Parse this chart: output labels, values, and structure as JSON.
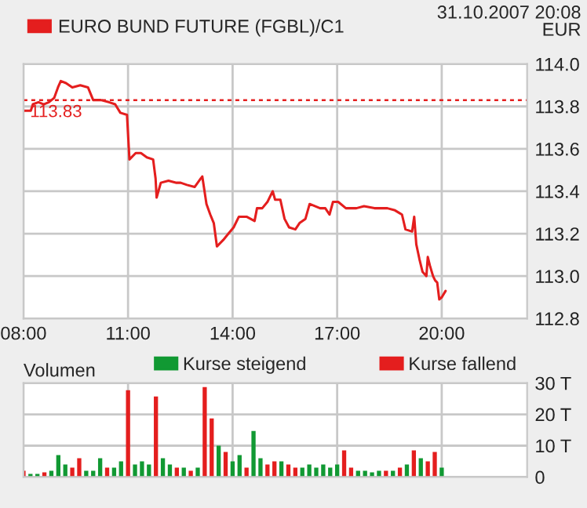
{
  "chart_data": [
    {
      "type": "line",
      "legend": "top left",
      "grid": true,
      "annotations": [
        "31.10.2007 20:08",
        "EUR"
      ],
      "xlim": [
        8,
        22.45
      ],
      "xticks": [
        {
          "value": 8,
          "label": "08:00"
        },
        {
          "value": 11,
          "label": "11:00"
        },
        {
          "value": 14,
          "label": "14:00"
        },
        {
          "value": 17,
          "label": "17:00"
        },
        {
          "value": 20,
          "label": "20:00"
        }
      ],
      "ylim": [
        112.8,
        114.0
      ],
      "yticks": [
        {
          "value": 112.8,
          "label": "112.8"
        },
        {
          "value": 113.0,
          "label": "113.0"
        },
        {
          "value": 113.2,
          "label": "113.2"
        },
        {
          "value": 113.4,
          "label": "113.4"
        },
        {
          "value": 113.6,
          "label": "113.6"
        },
        {
          "value": 113.8,
          "label": "113.8"
        },
        {
          "value": 114.0,
          "label": "114.0"
        }
      ],
      "ref_lines": [
        {
          "axis": "y",
          "value": 113.83,
          "label": "113.83",
          "color": "#e41e1e",
          "line_style": "dashed"
        }
      ],
      "x": [
        8.0,
        8.21,
        8.27,
        8.43,
        8.58,
        8.73,
        8.88,
        8.99,
        9.07,
        9.22,
        9.4,
        9.63,
        9.85,
        10.0,
        10.22,
        10.45,
        10.63,
        10.78,
        10.97,
        11.04,
        11.22,
        11.37,
        11.54,
        11.72,
        11.79,
        11.82,
        11.94,
        12.16,
        12.39,
        12.51,
        12.69,
        12.91,
        13.13,
        13.25,
        13.36,
        13.46,
        13.55,
        13.73,
        13.88,
        14.03,
        14.18,
        14.4,
        14.63,
        14.7,
        14.85,
        15.0,
        15.15,
        15.22,
        15.37,
        15.49,
        15.62,
        15.8,
        15.92,
        16.09,
        16.21,
        16.36,
        16.51,
        16.66,
        16.78,
        16.88,
        17.03,
        17.25,
        17.55,
        17.77,
        18.07,
        18.44,
        18.66,
        18.86,
        18.96,
        19.15,
        19.21,
        19.27,
        19.36,
        19.45,
        19.56,
        19.6,
        19.66,
        19.75,
        19.81,
        19.87,
        19.93,
        20.0,
        20.11
      ],
      "series": [
        {
          "name": "EURO BUND FUTURE (FGBL)/C1",
          "color": "#e41e1e",
          "values": [
            113.78,
            113.78,
            113.81,
            113.82,
            113.81,
            113.82,
            113.84,
            113.89,
            113.92,
            113.91,
            113.89,
            113.9,
            113.89,
            113.83,
            113.83,
            113.82,
            113.81,
            113.77,
            113.76,
            113.55,
            113.58,
            113.58,
            113.56,
            113.55,
            113.46,
            113.37,
            113.44,
            113.45,
            113.44,
            113.44,
            113.43,
            113.42,
            113.47,
            113.34,
            113.29,
            113.25,
            113.14,
            113.17,
            113.2,
            113.23,
            113.28,
            113.28,
            113.26,
            113.32,
            113.32,
            113.35,
            113.4,
            113.36,
            113.36,
            113.27,
            113.23,
            113.22,
            113.25,
            113.27,
            113.34,
            113.33,
            113.32,
            113.32,
            113.29,
            113.35,
            113.35,
            113.32,
            113.32,
            113.33,
            113.32,
            113.32,
            113.31,
            113.29,
            113.22,
            113.21,
            113.28,
            113.15,
            113.08,
            113.02,
            113.0,
            113.09,
            113.05,
            113.0,
            112.98,
            112.97,
            112.89,
            112.9,
            112.93
          ]
        }
      ]
    },
    {
      "type": "bar",
      "title": "Volumen",
      "legend": "top",
      "grid": true,
      "tick_labels": "y",
      "xlim": [
        8,
        22.45
      ],
      "xticks": [
        {
          "value": 8,
          "label": null
        },
        {
          "value": 11,
          "label": null
        },
        {
          "value": 14,
          "label": null
        },
        {
          "value": 17,
          "label": null
        },
        {
          "value": 20,
          "label": null
        }
      ],
      "ylim": [
        0,
        30
      ],
      "yticks": [
        0,
        {
          "value": 10,
          "label": "10 T"
        },
        {
          "value": 20,
          "label": "20 T"
        },
        {
          "value": 30,
          "label": "30 T"
        }
      ],
      "x": [
        8.0,
        8.2,
        8.4,
        8.6,
        8.8,
        9.0,
        9.2,
        9.4,
        9.6,
        9.8,
        10.0,
        10.2,
        10.4,
        10.6,
        10.8,
        11.0,
        11.2,
        11.4,
        11.6,
        11.8,
        12.0,
        12.2,
        12.4,
        12.6,
        12.8,
        13.0,
        13.2,
        13.4,
        13.6,
        13.8,
        14.0,
        14.2,
        14.4,
        14.6,
        14.8,
        15.0,
        15.2,
        15.4,
        15.6,
        15.8,
        16.0,
        16.2,
        16.4,
        16.6,
        16.8,
        17.0,
        17.2,
        17.4,
        17.6,
        17.8,
        18.0,
        18.2,
        18.4,
        18.6,
        18.8,
        19.0,
        19.2,
        19.4,
        19.6,
        19.8,
        20.0
      ],
      "series": [
        {
          "name": "Kurse steigend",
          "color": "#119933",
          "values": [
            null,
            1,
            1,
            null,
            2,
            7,
            4,
            null,
            null,
            2,
            2,
            6,
            null,
            3,
            5,
            null,
            4,
            5,
            4,
            null,
            6,
            4,
            null,
            3,
            null,
            3,
            null,
            null,
            10,
            null,
            5,
            7,
            null,
            14.7,
            6,
            null,
            null,
            5,
            null,
            null,
            3,
            4,
            3,
            4,
            3,
            4,
            null,
            null,
            2,
            2,
            1.5,
            2,
            null,
            2,
            null,
            4,
            null,
            6,
            null,
            null,
            3
          ]
        },
        {
          "name": "Kurse fallend",
          "color": "#e41e1e",
          "values": [
            2,
            null,
            null,
            1.5,
            null,
            null,
            null,
            3,
            6,
            null,
            null,
            null,
            3,
            null,
            null,
            27.7,
            null,
            null,
            null,
            25.7,
            null,
            null,
            3,
            null,
            2,
            null,
            28.7,
            18.7,
            null,
            8,
            null,
            null,
            3,
            null,
            null,
            4,
            5,
            null,
            4,
            3,
            null,
            null,
            null,
            null,
            null,
            null,
            8.5,
            3,
            null,
            null,
            null,
            null,
            2,
            null,
            3,
            null,
            8.5,
            null,
            5,
            8,
            null
          ]
        }
      ]
    }
  ]
}
